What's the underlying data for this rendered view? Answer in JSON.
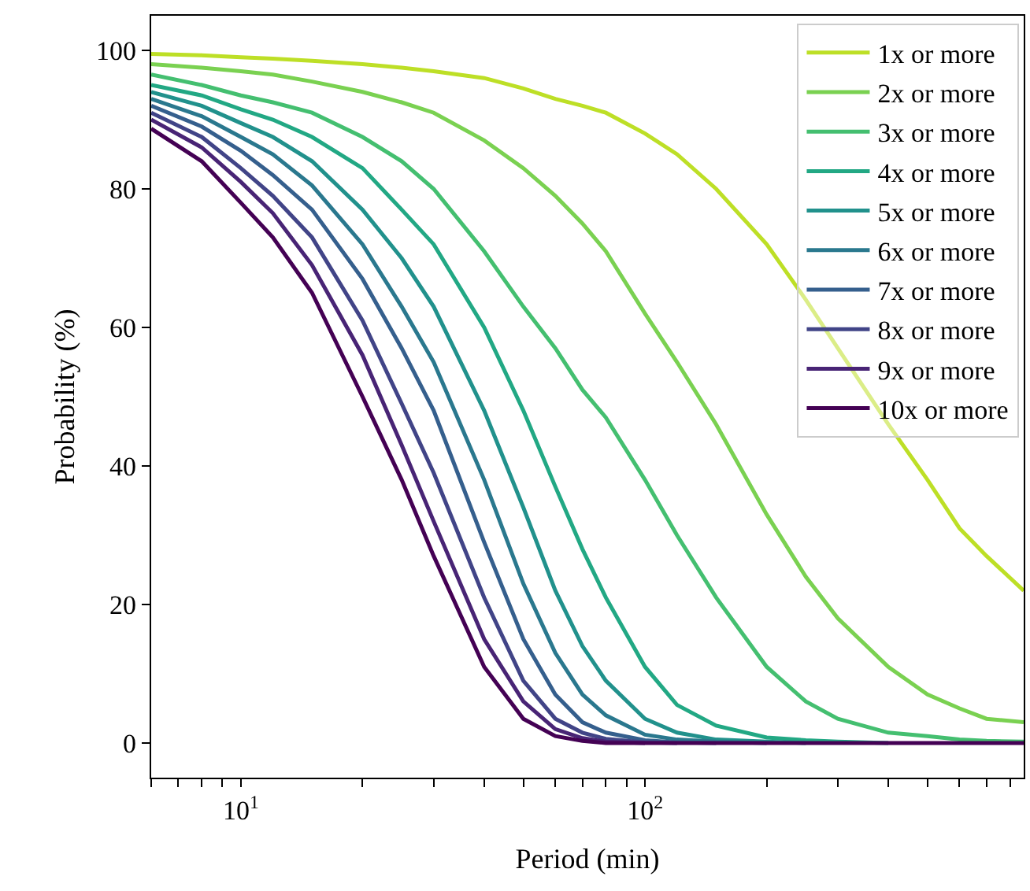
{
  "chart_data": {
    "type": "line",
    "xlabel": "Period (min)",
    "ylabel": "Probability (%)",
    "x": [
      6,
      8,
      10,
      12,
      15,
      20,
      25,
      30,
      40,
      50,
      60,
      70,
      80,
      100,
      120,
      150,
      200,
      250,
      300,
      400,
      500,
      600,
      700,
      865
    ],
    "series": [
      {
        "name": "1x or more",
        "color": "#bddf26",
        "values": [
          99.5,
          99.3,
          99,
          98.8,
          98.5,
          98,
          97.5,
          97,
          96,
          94.5,
          93,
          92,
          91,
          88,
          85,
          80,
          72,
          64,
          57,
          46,
          38,
          31,
          27,
          22
        ]
      },
      {
        "name": "2x or more",
        "color": "#7ad151",
        "values": [
          98,
          97.5,
          97,
          96.5,
          95.5,
          94,
          92.5,
          91,
          87,
          83,
          79,
          75,
          71,
          62,
          55,
          46,
          33,
          24,
          18,
          11,
          7,
          5,
          3.5,
          3
        ]
      },
      {
        "name": "3x or more",
        "color": "#44bf70",
        "values": [
          96.5,
          95,
          93.5,
          92.5,
          91,
          87.5,
          84,
          80,
          71,
          63,
          57,
          51,
          47,
          38,
          30,
          21,
          11,
          6,
          3.5,
          1.5,
          1,
          0.5,
          0.3,
          0.2
        ]
      },
      {
        "name": "4x or more",
        "color": "#22a884",
        "values": [
          95,
          93.5,
          91.5,
          90,
          87.5,
          83,
          77,
          72,
          60,
          48,
          37,
          28,
          21,
          11,
          5.5,
          2.5,
          0.8,
          0.4,
          0.2,
          0,
          null,
          null,
          null,
          null
        ]
      },
      {
        "name": "5x or more",
        "color": "#21918c",
        "values": [
          94,
          92,
          89.5,
          87.5,
          84,
          77,
          70,
          63,
          48,
          34,
          22,
          14,
          9,
          3.5,
          1.5,
          0.5,
          0.2,
          0,
          null,
          null,
          null,
          null,
          null,
          null
        ]
      },
      {
        "name": "6x or more",
        "color": "#2a788e",
        "values": [
          93,
          90.5,
          87.5,
          85,
          80.5,
          72,
          63,
          55,
          38,
          23,
          13,
          7,
          4,
          1.2,
          0.5,
          0.2,
          0,
          null,
          null,
          null,
          null,
          null,
          null,
          null
        ]
      },
      {
        "name": "7x or more",
        "color": "#355f8d",
        "values": [
          92,
          89,
          85.5,
          82,
          77,
          67,
          57,
          48,
          29,
          15,
          7,
          3,
          1.5,
          0.4,
          0.1,
          0,
          null,
          null,
          null,
          null,
          null,
          null,
          null,
          null
        ]
      },
      {
        "name": "8x or more",
        "color": "#414487",
        "values": [
          91,
          87.5,
          83,
          79,
          73,
          61,
          49,
          39,
          21,
          9,
          3.5,
          1.5,
          0.6,
          0.1,
          0,
          null,
          null,
          null,
          null,
          null,
          null,
          null,
          null,
          null
        ]
      },
      {
        "name": "9x or more",
        "color": "#482475",
        "values": [
          90,
          86,
          81,
          76.5,
          69,
          56,
          43,
          32,
          15,
          6,
          2,
          0.7,
          0.2,
          0,
          null,
          null,
          null,
          null,
          null,
          null,
          null,
          null,
          null,
          null
        ]
      },
      {
        "name": "10x or more",
        "color": "#440154",
        "values": [
          88.7,
          84,
          78,
          73,
          65,
          50,
          38,
          27,
          11,
          3.5,
          1,
          0.3,
          0,
          0,
          0,
          0,
          0,
          0,
          0,
          0,
          0,
          0,
          0,
          0
        ]
      }
    ],
    "log": "x",
    "xlim": [
      6,
      865
    ],
    "xticks": [
      {
        "value": 6,
        "label": null
      },
      {
        "value": 7,
        "label": null
      },
      {
        "value": 8,
        "label": null
      },
      {
        "value": 9,
        "label": null
      },
      {
        "value": 10,
        "label": "10$^{1}$"
      },
      {
        "value": 20,
        "label": null
      },
      {
        "value": 30,
        "label": null
      },
      {
        "value": 40,
        "label": null
      },
      {
        "value": 50,
        "label": null
      },
      {
        "value": 60,
        "label": null
      },
      {
        "value": 70,
        "label": null
      },
      {
        "value": 80,
        "label": null
      },
      {
        "value": 90,
        "label": null
      },
      {
        "value": 100,
        "label": "10$^{2}$"
      },
      {
        "value": 200,
        "label": null
      },
      {
        "value": 300,
        "label": null
      },
      {
        "value": 400,
        "label": null
      },
      {
        "value": 500,
        "label": null
      },
      {
        "value": 600,
        "label": null
      },
      {
        "value": 700,
        "label": null
      },
      {
        "value": 800,
        "label": null
      }
    ],
    "ylim": [
      -5,
      105
    ],
    "yticks": [
      0,
      20,
      40,
      60,
      80,
      100
    ],
    "grid": false,
    "legend": "top right",
    "line_style": "solid",
    "marker": "none"
  }
}
